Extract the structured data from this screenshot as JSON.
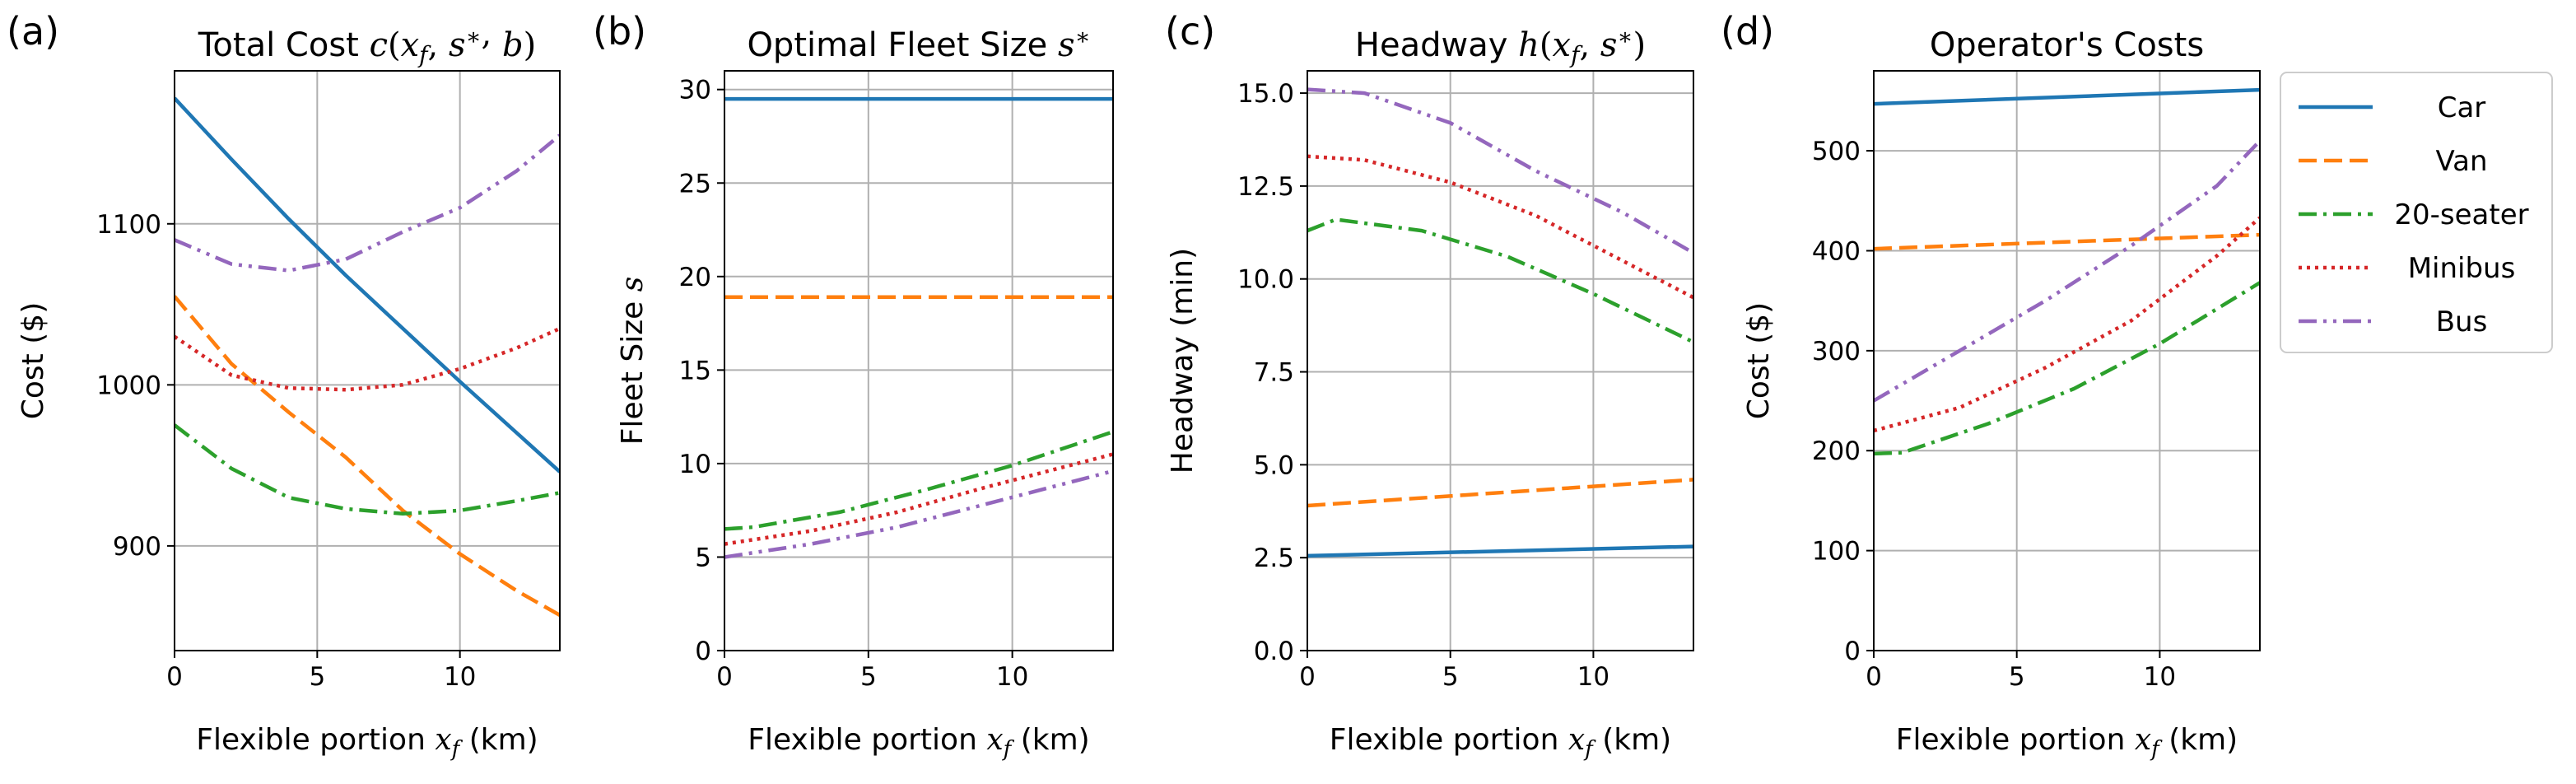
{
  "colors": {
    "Car": "#1f77b4",
    "Van": "#ff7f0e",
    "20-seater": "#2ca02c",
    "Minibus": "#d62728",
    "Bus": "#9467bd"
  },
  "legend": [
    "Car",
    "Van",
    "20-seater",
    "Minibus",
    "Bus"
  ],
  "chart_data": [
    {
      "panel": "(a)",
      "type": "line",
      "title": "Total Cost",
      "title_math": "c(x_f, s*, b)",
      "xlabel": "Flexible portion",
      "xlabel_math": "x_f",
      "xlabel_unit": "(km)",
      "ylabel": "Cost ($)",
      "xlim": [
        0,
        13.5
      ],
      "ylim": [
        835,
        1195
      ],
      "xticks": [
        0,
        5,
        10
      ],
      "yticks": [
        900,
        1000,
        1100
      ],
      "grid": true,
      "series": [
        {
          "name": "Car",
          "x": [
            0,
            2,
            4,
            6,
            8,
            10,
            12,
            13.5
          ],
          "y": [
            1178,
            1140,
            1103,
            1068,
            1035,
            1002,
            970,
            946
          ]
        },
        {
          "name": "Van",
          "x": [
            0,
            2,
            4,
            6,
            8,
            10,
            12,
            13.5
          ],
          "y": [
            1055,
            1013,
            983,
            955,
            922,
            895,
            872,
            857
          ]
        },
        {
          "name": "20-seater",
          "x": [
            0,
            2,
            4,
            6,
            8,
            10,
            12,
            13.5
          ],
          "y": [
            975,
            948,
            930,
            923,
            920,
            922,
            928,
            933
          ]
        },
        {
          "name": "Minibus",
          "x": [
            0,
            2,
            4,
            6,
            8,
            10,
            12,
            13.5
          ],
          "y": [
            1030,
            1006,
            998,
            997,
            1000,
            1010,
            1023,
            1035
          ]
        },
        {
          "name": "Bus",
          "x": [
            0,
            2,
            4,
            6,
            8,
            10,
            12,
            13.5
          ],
          "y": [
            1090,
            1075,
            1071,
            1078,
            1095,
            1110,
            1133,
            1155
          ]
        }
      ]
    },
    {
      "panel": "(b)",
      "type": "line",
      "title": "Optimal Fleet Size",
      "title_math": "s*",
      "xlabel": "Flexible portion",
      "xlabel_math": "x_f",
      "xlabel_unit": "(km)",
      "ylabel": "Fleet Size",
      "ylabel_math": "s",
      "xlim": [
        0,
        13.5
      ],
      "ylim": [
        0,
        31
      ],
      "xticks": [
        0,
        5,
        10
      ],
      "yticks": [
        0,
        5,
        10,
        15,
        20,
        25,
        30
      ],
      "grid": true,
      "series": [
        {
          "name": "Car",
          "x": [
            0,
            13.5
          ],
          "y": [
            29.5,
            29.5
          ]
        },
        {
          "name": "Van",
          "x": [
            0,
            13.5
          ],
          "y": [
            18.9,
            18.9
          ]
        },
        {
          "name": "20-seater",
          "x": [
            0,
            1,
            4,
            7,
            10,
            13.5
          ],
          "y": [
            6.5,
            6.6,
            7.4,
            8.6,
            9.9,
            11.7
          ]
        },
        {
          "name": "Minibus",
          "x": [
            0,
            3,
            6,
            9,
            13.5
          ],
          "y": [
            5.7,
            6.4,
            7.4,
            8.7,
            10.5
          ]
        },
        {
          "name": "Bus",
          "x": [
            0,
            3,
            6,
            9,
            13.5
          ],
          "y": [
            5.0,
            5.7,
            6.6,
            7.8,
            9.6
          ]
        }
      ]
    },
    {
      "panel": "(c)",
      "type": "line",
      "title": "Headway",
      "title_math": "h(x_f, s*)",
      "xlabel": "Flexible portion",
      "xlabel_math": "x_f",
      "xlabel_unit": "(km)",
      "ylabel": "Headway (min)",
      "xlim": [
        0,
        13.5
      ],
      "ylim": [
        0,
        15.6
      ],
      "xticks": [
        0,
        5,
        10
      ],
      "yticks": [
        0,
        2.5,
        5,
        7.5,
        10,
        12.5,
        15
      ],
      "ytick_labels": [
        "0.0",
        "2.5",
        "5.0",
        "7.5",
        "10.0",
        "12.5",
        "15.0"
      ],
      "grid": true,
      "series": [
        {
          "name": "Car",
          "x": [
            0,
            13.5
          ],
          "y": [
            2.55,
            2.8
          ]
        },
        {
          "name": "Van",
          "x": [
            0,
            13.5
          ],
          "y": [
            3.9,
            4.6
          ]
        },
        {
          "name": "20-seater",
          "x": [
            0,
            1,
            4,
            7,
            10,
            13.5
          ],
          "y": [
            11.3,
            11.6,
            11.3,
            10.6,
            9.6,
            8.3
          ]
        },
        {
          "name": "Minibus",
          "x": [
            0,
            2,
            5,
            8,
            11,
            13.5
          ],
          "y": [
            13.3,
            13.2,
            12.6,
            11.7,
            10.5,
            9.5
          ]
        },
        {
          "name": "Bus",
          "x": [
            0,
            2,
            5,
            8,
            11,
            13.5
          ],
          "y": [
            15.1,
            15.0,
            14.2,
            12.9,
            11.8,
            10.7
          ]
        }
      ]
    },
    {
      "panel": "(d)",
      "type": "line",
      "title": "Operator's Costs",
      "xlabel": "Flexible portion",
      "xlabel_math": "x_f",
      "xlabel_unit": "(km)",
      "ylabel": "Cost ($)",
      "xlim": [
        0,
        13.5
      ],
      "ylim": [
        0,
        580
      ],
      "xticks": [
        0,
        5,
        10
      ],
      "yticks": [
        0,
        100,
        200,
        300,
        400,
        500
      ],
      "grid": true,
      "series": [
        {
          "name": "Car",
          "x": [
            0,
            13.5
          ],
          "y": [
            547,
            561
          ]
        },
        {
          "name": "Van",
          "x": [
            0,
            13.5
          ],
          "y": [
            402,
            416
          ]
        },
        {
          "name": "20-seater",
          "x": [
            0,
            1,
            4,
            7,
            10,
            13.5
          ],
          "y": [
            197,
            198,
            227,
            262,
            307,
            368
          ]
        },
        {
          "name": "Minibus",
          "x": [
            0,
            3,
            6,
            9,
            12,
            13.5
          ],
          "y": [
            220,
            243,
            283,
            330,
            395,
            433
          ]
        },
        {
          "name": "Bus",
          "x": [
            0,
            3,
            6,
            9,
            12,
            13.5
          ],
          "y": [
            250,
            300,
            350,
            405,
            465,
            510
          ]
        }
      ]
    }
  ]
}
